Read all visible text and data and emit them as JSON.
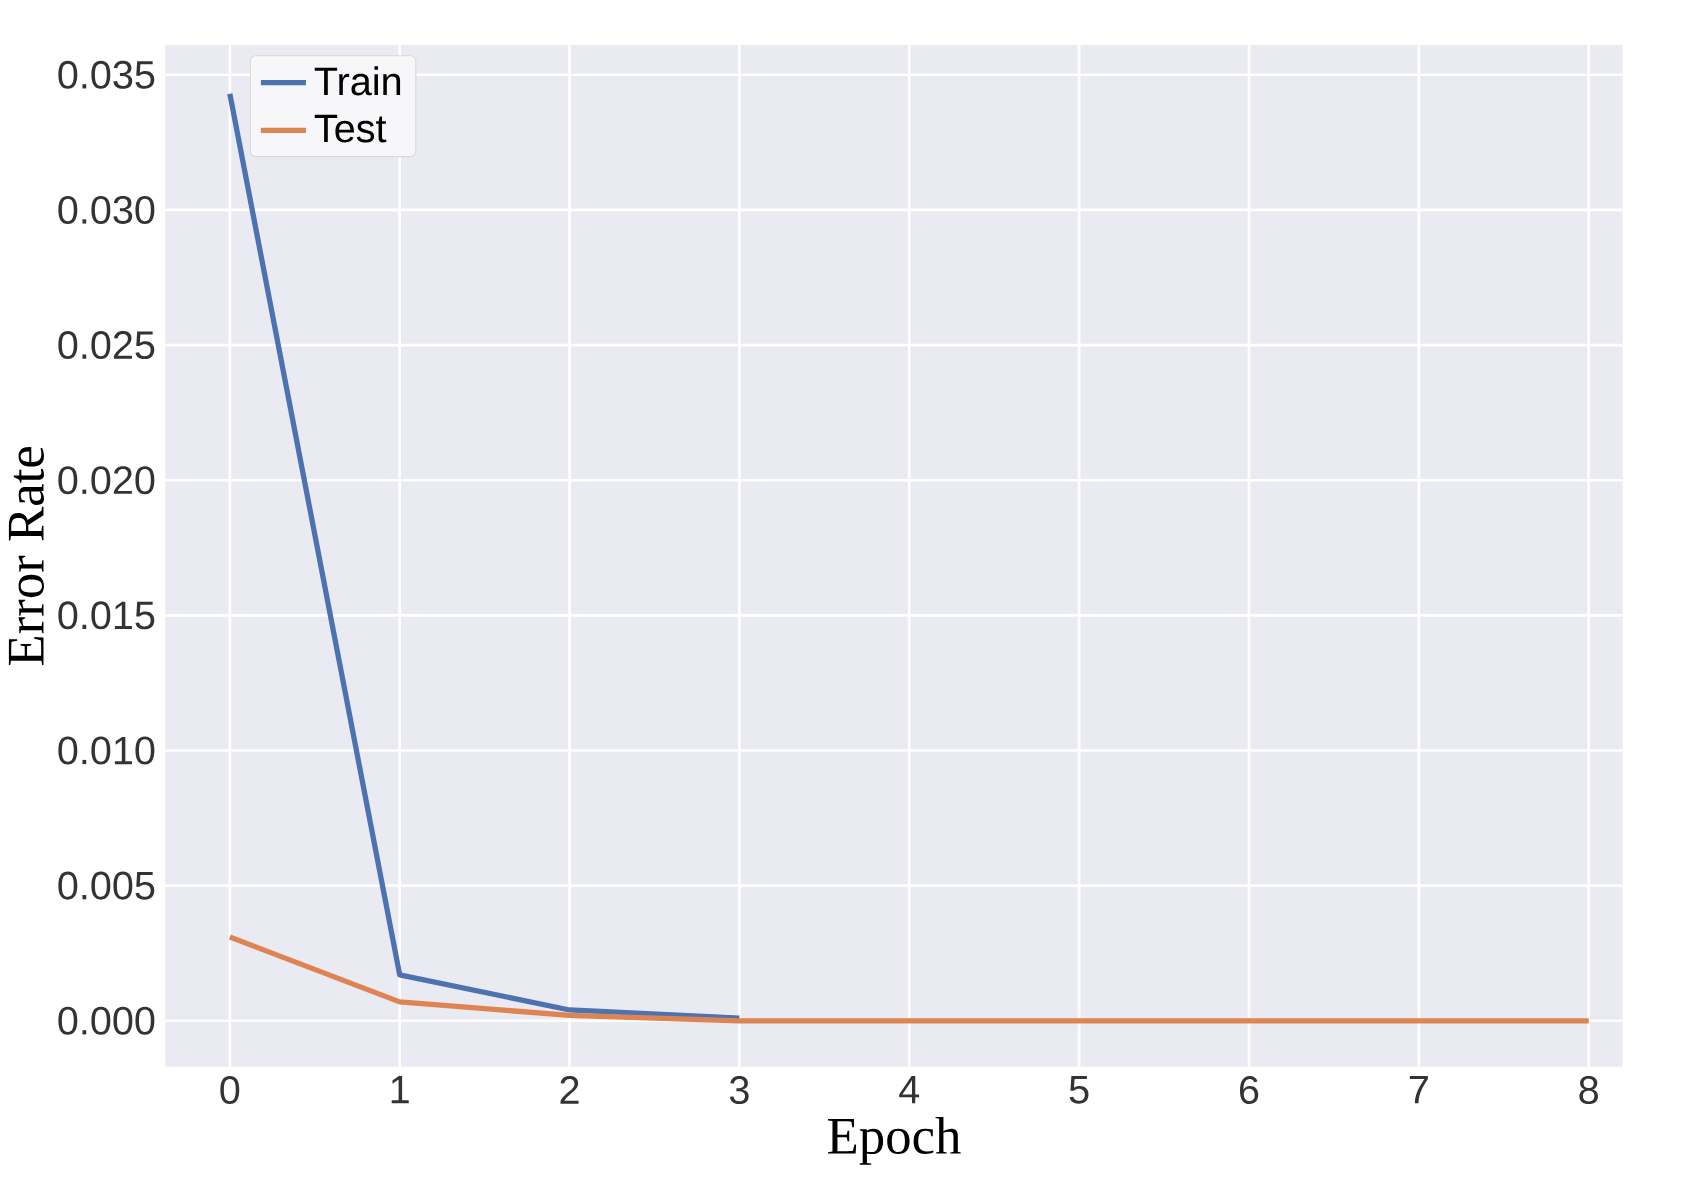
{
  "chart_data": {
    "type": "line",
    "xlabel": "Epoch",
    "ylabel": "Error Rate",
    "x": [
      0,
      1,
      2,
      3,
      4,
      5,
      6,
      7,
      8
    ],
    "series": [
      {
        "name": "Train",
        "color": "#4c72b0",
        "values": [
          0.0343,
          0.0017,
          0.0004,
          0.0001,
          null,
          null,
          null,
          null,
          null
        ]
      },
      {
        "name": "Test",
        "color": "#dd8452",
        "values": [
          0.0031,
          0.0007,
          0.0002,
          0,
          0,
          0,
          0,
          0,
          0
        ]
      }
    ],
    "xlim": [
      -0.38,
      8.2
    ],
    "ylim": [
      -0.0017,
      0.0361
    ],
    "xticks": [
      0,
      1,
      2,
      3,
      4,
      5,
      6,
      7,
      8
    ],
    "yticks": [
      {
        "value": 0,
        "label": "0.000"
      },
      {
        "value": 0.005,
        "label": "0.005"
      },
      {
        "value": 0.01,
        "label": "0.010"
      },
      {
        "value": 0.015,
        "label": "0.015"
      },
      {
        "value": 0.02,
        "label": "0.020"
      },
      {
        "value": 0.025,
        "label": "0.025"
      },
      {
        "value": 0.03,
        "label": "0.030"
      },
      {
        "value": 0.035,
        "label": "0.035"
      }
    ],
    "grid": true,
    "legend": "top left",
    "marker": "none",
    "line_style": "solid"
  }
}
